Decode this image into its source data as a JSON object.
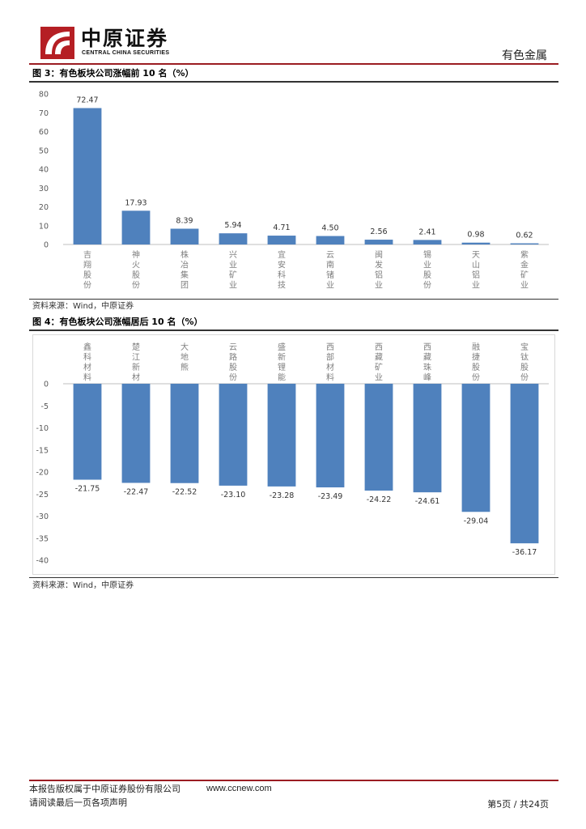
{
  "header": {
    "logo_cn": "中原证券",
    "logo_en": "CENTRAL CHINA SECURITIES",
    "section_title": "有色金属"
  },
  "figure3": {
    "title": "图 3：有色板块公司涨幅前 10 名（%）",
    "source": "资料来源：Wind，中原证券"
  },
  "figure4": {
    "title": "图 4：有色板块公司涨幅居后 10 名（%）",
    "source": "资料来源：Wind，中原证券"
  },
  "chart_data": [
    {
      "type": "bar",
      "title": "图 3：有色板块公司涨幅前 10 名（%）",
      "categories": [
        "吉翔股份",
        "神火股份",
        "株冶集团",
        "兴业矿业",
        "宜安科技",
        "云南锗业",
        "闽发铝业",
        "锡业股份",
        "天山铝业",
        "紫金矿业"
      ],
      "values": [
        72.47,
        17.93,
        8.39,
        5.94,
        4.71,
        4.5,
        2.56,
        2.41,
        0.98,
        0.62
      ],
      "value_labels": [
        "72.47",
        "17.93",
        "8.39",
        "5.94",
        "4.71",
        "4.50",
        "2.56",
        "2.41",
        "0.98",
        "0.62"
      ],
      "ylim": [
        0,
        80
      ],
      "yticks": [
        "0",
        "10",
        "20",
        "30",
        "40",
        "50",
        "60",
        "70",
        "80"
      ],
      "xlabel": "",
      "ylabel": "",
      "grid": false,
      "bar_color": "#4f81bd"
    },
    {
      "type": "bar",
      "title": "图 4：有色板块公司涨幅居后 10 名（%）",
      "categories": [
        "鑫科材料",
        "楚江新材",
        "大地熊",
        "云路股份",
        "盛新锂能",
        "西部材料",
        "西藏矿业",
        "西藏珠峰",
        "融捷股份",
        "宝钛股份"
      ],
      "values": [
        -21.75,
        -22.47,
        -22.52,
        -23.1,
        -23.28,
        -23.49,
        -24.22,
        -24.61,
        -29.04,
        -36.17
      ],
      "value_labels": [
        "-21.75",
        "-22.47",
        "-22.52",
        "-23.10",
        "-23.28",
        "-23.49",
        "-24.22",
        "-24.61",
        "-29.04",
        "-36.17"
      ],
      "ylim": [
        -40,
        0
      ],
      "yticks": [
        "0",
        "-5",
        "-10",
        "-15",
        "-20",
        "-25",
        "-30",
        "-35",
        "-40"
      ],
      "xlabel": "",
      "ylabel": "",
      "grid": false,
      "bar_color": "#4f81bd"
    }
  ],
  "footer": {
    "copyright": "本报告版权属于中原证券股份有限公司",
    "url": "www.ccnew.com",
    "disclaimer": "请阅读最后一页各项声明",
    "page": "第5页 / 共24页"
  }
}
